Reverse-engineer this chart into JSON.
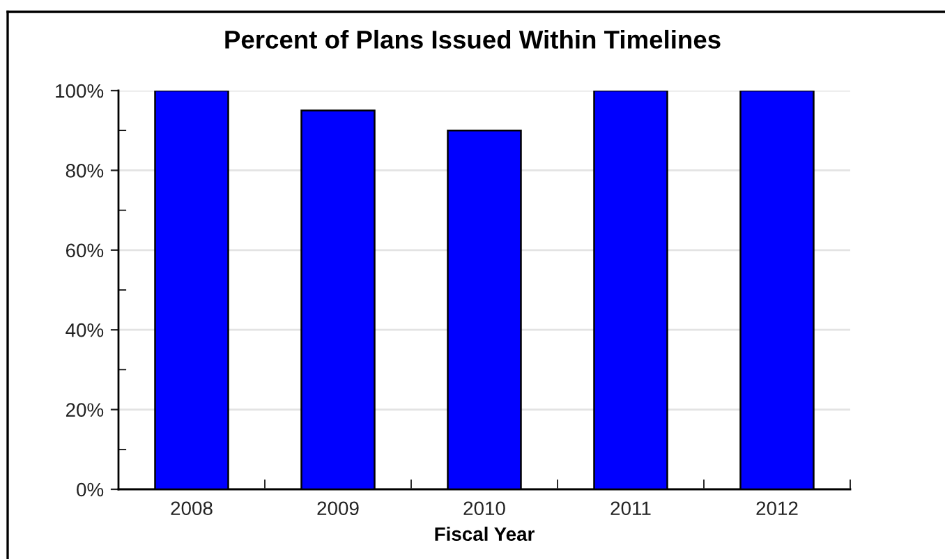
{
  "chart_data": {
    "type": "bar",
    "title": "Percent of Plans Issued Within Timelines",
    "xlabel": "Fiscal Year",
    "categories": [
      "2008",
      "2009",
      "2010",
      "2011",
      "2012"
    ],
    "values": [
      100,
      95,
      90,
      100,
      100
    ],
    "color": "#0000ff",
    "ylim": [
      0,
      100
    ],
    "yticks": [
      {
        "value": 0,
        "label": "0%"
      },
      {
        "value": 10,
        "label": null
      },
      {
        "value": 20,
        "label": "20%"
      },
      {
        "value": 30,
        "label": null
      },
      {
        "value": 40,
        "label": "40%"
      },
      {
        "value": 50,
        "label": null
      },
      {
        "value": 60,
        "label": "60%"
      },
      {
        "value": 70,
        "label": null
      },
      {
        "value": 80,
        "label": "80%"
      },
      {
        "value": 90,
        "label": null
      },
      {
        "value": 100,
        "label": "100%"
      }
    ],
    "grid": "y"
  }
}
